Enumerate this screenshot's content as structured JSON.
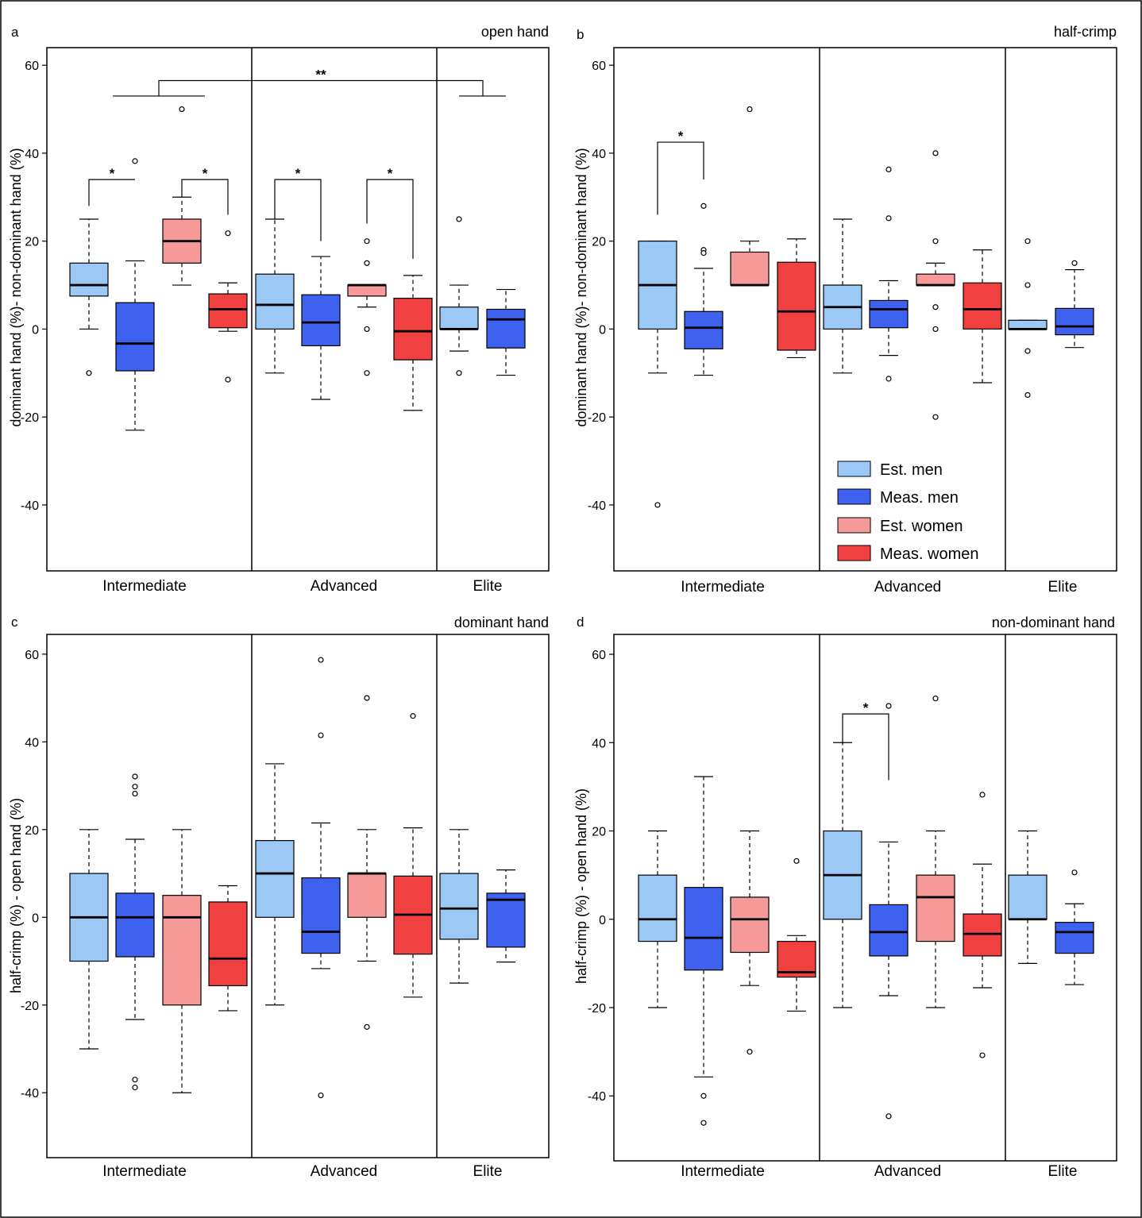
{
  "colors": {
    "est_men": "#9cc8f6",
    "meas_men": "#3e62ef",
    "est_women": "#f69a99",
    "meas_women": "#f04040",
    "line": "#000000"
  },
  "legend": {
    "items": [
      {
        "label": "Est. men",
        "color": "#9cc8f6"
      },
      {
        "label": "Meas. men",
        "color": "#3e62ef"
      },
      {
        "label": "Est. women",
        "color": "#f69a99"
      },
      {
        "label": "Meas. women",
        "color": "#f04040"
      }
    ]
  },
  "chart_data": [
    {
      "type": "box",
      "panel_letter": "a",
      "title": "open hand",
      "ylabel": "dominant hand (%)- non-dominant hand (%)",
      "ylim": [
        -55,
        64
      ],
      "yticks": [
        60,
        40,
        20,
        0,
        -20,
        -40
      ],
      "ytick_labels": [
        "60",
        "40",
        "20",
        "0",
        "-20",
        "-40"
      ],
      "groups": [
        "Intermediate",
        "Advanced",
        "Elite"
      ],
      "boxes": [
        {
          "group": "Intermediate",
          "series": "est_men",
          "whislo": 0,
          "q1": 7.5,
          "med": 10,
          "q3": 15,
          "whishi": 25,
          "fliers": [
            -10
          ]
        },
        {
          "group": "Intermediate",
          "series": "meas_men",
          "whislo": -23,
          "q1": -9.5,
          "med": -3.3,
          "q3": 6,
          "whishi": 15.5,
          "fliers": [
            38.2
          ]
        },
        {
          "group": "Intermediate",
          "series": "est_women",
          "whislo": 10,
          "q1": 15,
          "med": 20,
          "q3": 25,
          "whishi": 30,
          "fliers": [
            50
          ]
        },
        {
          "group": "Intermediate",
          "series": "meas_women",
          "whislo": -0.5,
          "q1": 0.3,
          "med": 4.5,
          "q3": 8,
          "whishi": 10.5,
          "fliers": [
            21.8,
            -11.5
          ]
        },
        {
          "group": "Advanced",
          "series": "est_men",
          "whislo": -10,
          "q1": 0,
          "med": 5.5,
          "q3": 12.5,
          "whishi": 25,
          "fliers": []
        },
        {
          "group": "Advanced",
          "series": "meas_men",
          "whislo": -16,
          "q1": -3.8,
          "med": 1.5,
          "q3": 7.8,
          "whishi": 16.5,
          "fliers": []
        },
        {
          "group": "Advanced",
          "series": "est_women",
          "whislo": 5,
          "q1": 7.5,
          "med": 10,
          "q3": 10,
          "whishi": 10,
          "fliers": [
            20,
            15,
            0,
            -10
          ]
        },
        {
          "group": "Advanced",
          "series": "meas_women",
          "whislo": -18.5,
          "q1": -7,
          "med": -0.5,
          "q3": 7,
          "whishi": 12.2,
          "fliers": []
        },
        {
          "group": "Elite",
          "series": "est_men",
          "whislo": -5,
          "q1": 0,
          "med": 0,
          "q3": 5,
          "whishi": 10,
          "fliers": [
            25,
            -10
          ]
        },
        {
          "group": "Elite",
          "series": "meas_men",
          "whislo": -10.5,
          "q1": -4.3,
          "med": 2.2,
          "q3": 4.5,
          "whishi": 9,
          "fliers": []
        }
      ],
      "annotations": [
        {
          "type": "bracket",
          "label": "*",
          "from_box": 0,
          "to_box": 1,
          "y_top": 34,
          "y_left": 28,
          "y_right": 34
        },
        {
          "type": "bracket",
          "label": "*",
          "from_box": 2,
          "to_box": 3,
          "y_top": 34,
          "y_left": 30,
          "y_right": 26
        },
        {
          "type": "bracket",
          "label": "*",
          "from_box": 4,
          "to_box": 5,
          "y_top": 34,
          "y_left": 25,
          "y_right": 20
        },
        {
          "type": "bracket",
          "label": "*",
          "from_box": 6,
          "to_box": 7,
          "y_top": 34,
          "y_left": 24,
          "y_right": 16
        },
        {
          "type": "span",
          "label": "**"
        }
      ]
    },
    {
      "type": "box",
      "panel_letter": "b",
      "title": "half-crimp",
      "ylabel": "dominant hand (%)- non-dominant hand (%)",
      "ylim": [
        -55,
        64
      ],
      "yticks": [
        60,
        40,
        20,
        0,
        -20,
        -40
      ],
      "ytick_labels": [
        "60",
        "40",
        "20",
        "0",
        "-20",
        "-40"
      ],
      "groups": [
        "Intermediate",
        "Advanced",
        "Elite"
      ],
      "boxes": [
        {
          "group": "Intermediate",
          "series": "est_men",
          "whislo": -10,
          "q1": 0,
          "med": 10,
          "q3": 20,
          "whishi": 20,
          "fliers": [
            -40
          ]
        },
        {
          "group": "Intermediate",
          "series": "meas_men",
          "whislo": -10.5,
          "q1": -4.5,
          "med": 0.3,
          "q3": 4,
          "whishi": 13.8,
          "fliers": [
            28,
            18,
            17.3
          ]
        },
        {
          "group": "Intermediate",
          "series": "est_women",
          "whislo": 10,
          "q1": 10,
          "med": 10,
          "q3": 17.5,
          "whishi": 20,
          "fliers": [
            50
          ]
        },
        {
          "group": "Intermediate",
          "series": "meas_women",
          "whislo": -6.5,
          "q1": -4.8,
          "med": 4,
          "q3": 15.2,
          "whishi": 20.5,
          "fliers": []
        },
        {
          "group": "Advanced",
          "series": "est_men",
          "whislo": -10,
          "q1": 0,
          "med": 5,
          "q3": 10,
          "whishi": 25,
          "fliers": []
        },
        {
          "group": "Advanced",
          "series": "meas_men",
          "whislo": -6,
          "q1": 0.3,
          "med": 4.5,
          "q3": 6.5,
          "whishi": 11,
          "fliers": [
            36.3,
            25.2,
            -11.3
          ]
        },
        {
          "group": "Advanced",
          "series": "est_women",
          "whislo": 10,
          "q1": 10,
          "med": 10,
          "q3": 12.5,
          "whishi": 15,
          "fliers": [
            40,
            20,
            5,
            0,
            -20
          ]
        },
        {
          "group": "Advanced",
          "series": "meas_women",
          "whislo": -12.2,
          "q1": 0,
          "med": 4.5,
          "q3": 10.5,
          "whishi": 18,
          "fliers": []
        },
        {
          "group": "Elite",
          "series": "est_men",
          "whislo": 0,
          "q1": 0,
          "med": 0,
          "q3": 2,
          "whishi": 2,
          "fliers": [
            20,
            10,
            -5,
            -15
          ]
        },
        {
          "group": "Elite",
          "series": "meas_men",
          "whislo": -4.2,
          "q1": -1.3,
          "med": 0.6,
          "q3": 4.7,
          "whishi": 13.5,
          "fliers": [
            15
          ]
        }
      ],
      "annotations": [
        {
          "type": "bracket",
          "label": "*",
          "from_box": 0,
          "to_box": 1,
          "y_top": 42.5,
          "y_left": 26,
          "y_right": 34
        }
      ]
    },
    {
      "type": "box",
      "panel_letter": "c",
      "title": "dominant hand",
      "ylabel": "half-crimp (%) - open hand (%)",
      "ylim": [
        -54.8,
        64.5
      ],
      "yticks": [
        60,
        40,
        20,
        0,
        -20,
        -40
      ],
      "ytick_labels": [
        "60",
        "40",
        "20",
        "0",
        "-20",
        "-40"
      ],
      "groups": [
        "Intermediate",
        "Advanced",
        "Elite"
      ],
      "boxes": [
        {
          "group": "Intermediate",
          "series": "est_men",
          "whislo": -30,
          "q1": -10,
          "med": 0,
          "q3": 10,
          "whishi": 20,
          "fliers": []
        },
        {
          "group": "Intermediate",
          "series": "meas_men",
          "whislo": -23.3,
          "q1": -9,
          "med": 0,
          "q3": 5.5,
          "whishi": 17.8,
          "fliers": [
            32.1,
            29.8,
            28.2,
            -37,
            -38.8
          ]
        },
        {
          "group": "Intermediate",
          "series": "est_women",
          "whislo": -40,
          "q1": -20,
          "med": 0,
          "q3": 5,
          "whishi": 20,
          "fliers": []
        },
        {
          "group": "Intermediate",
          "series": "meas_women",
          "whislo": -21.3,
          "q1": -15.6,
          "med": -9.4,
          "q3": 3.5,
          "whishi": 7.2,
          "fliers": []
        },
        {
          "group": "Advanced",
          "series": "est_men",
          "whislo": -20,
          "q1": 0,
          "med": 10,
          "q3": 17.5,
          "whishi": 35,
          "fliers": []
        },
        {
          "group": "Advanced",
          "series": "meas_men",
          "whislo": -11.7,
          "q1": -8.2,
          "med": -3.3,
          "q3": 9,
          "whishi": 21.5,
          "fliers": [
            58.7,
            41.5,
            -40.6
          ]
        },
        {
          "group": "Advanced",
          "series": "est_women",
          "whislo": -10,
          "q1": 0,
          "med": 10,
          "q3": 10,
          "whishi": 20,
          "fliers": [
            50,
            -25
          ]
        },
        {
          "group": "Advanced",
          "series": "meas_women",
          "whislo": -18.2,
          "q1": -8.4,
          "med": 0.6,
          "q3": 9.4,
          "whishi": 20.4,
          "fliers": [
            45.9
          ]
        },
        {
          "group": "Elite",
          "series": "est_men",
          "whislo": -15,
          "q1": -5,
          "med": 2,
          "q3": 10,
          "whishi": 20,
          "fliers": []
        },
        {
          "group": "Elite",
          "series": "meas_men",
          "whislo": -10.2,
          "q1": -6.8,
          "med": 4,
          "q3": 5.5,
          "whishi": 10.8,
          "fliers": []
        }
      ],
      "annotations": []
    },
    {
      "type": "box",
      "panel_letter": "d",
      "title": "non-dominant hand",
      "ylabel": "half-crimp (%) - open hand (%)",
      "ylim": [
        -54.7,
        64.5
      ],
      "yticks": [
        60,
        40,
        20,
        0,
        -20,
        -40
      ],
      "ytick_labels": [
        "60",
        "40",
        "20",
        "0",
        "-20",
        "-40"
      ],
      "groups": [
        "Intermediate",
        "Advanced",
        "Elite"
      ],
      "boxes": [
        {
          "group": "Intermediate",
          "series": "est_men",
          "whislo": -20,
          "q1": -5,
          "med": 0,
          "q3": 10,
          "whishi": 20,
          "fliers": []
        },
        {
          "group": "Intermediate",
          "series": "meas_men",
          "whislo": -35.7,
          "q1": -11.5,
          "med": -4.2,
          "q3": 7.2,
          "whishi": 32.3,
          "fliers": [
            -40,
            -46.1
          ]
        },
        {
          "group": "Intermediate",
          "series": "est_women",
          "whislo": -15,
          "q1": -7.5,
          "med": 0,
          "q3": 5,
          "whishi": 20,
          "fliers": [
            -30
          ]
        },
        {
          "group": "Intermediate",
          "series": "meas_women",
          "whislo": -20.8,
          "q1": -13.1,
          "med": -12,
          "q3": -5,
          "whishi": -3.7,
          "fliers": [
            13.2
          ]
        },
        {
          "group": "Advanced",
          "series": "est_men",
          "whislo": -20,
          "q1": 0,
          "med": 10,
          "q3": 20,
          "whishi": 40,
          "fliers": []
        },
        {
          "group": "Advanced",
          "series": "meas_men",
          "whislo": -17.3,
          "q1": -8.3,
          "med": -2.9,
          "q3": 3.3,
          "whishi": 17.5,
          "fliers": [
            48.3,
            -44.6
          ]
        },
        {
          "group": "Advanced",
          "series": "est_women",
          "whislo": -20,
          "q1": -5,
          "med": 5,
          "q3": 10,
          "whishi": 20,
          "fliers": [
            50
          ]
        },
        {
          "group": "Advanced",
          "series": "meas_women",
          "whislo": -15.5,
          "q1": -8.3,
          "med": -3.3,
          "q3": 1.2,
          "whishi": 12.5,
          "fliers": [
            28.2,
            -30.8
          ]
        },
        {
          "group": "Elite",
          "series": "est_men",
          "whislo": -10,
          "q1": 0,
          "med": 0,
          "q3": 10,
          "whishi": 20,
          "fliers": []
        },
        {
          "group": "Elite",
          "series": "meas_men",
          "whislo": -14.8,
          "q1": -7.7,
          "med": -2.9,
          "q3": -0.7,
          "whishi": 3.5,
          "fliers": [
            10.6
          ]
        }
      ],
      "annotations": [
        {
          "type": "bracket",
          "label": "*",
          "from_box": 4,
          "to_box": 5,
          "y_top": 46.5,
          "y_left": 40,
          "y_right": 31.5
        }
      ]
    }
  ]
}
